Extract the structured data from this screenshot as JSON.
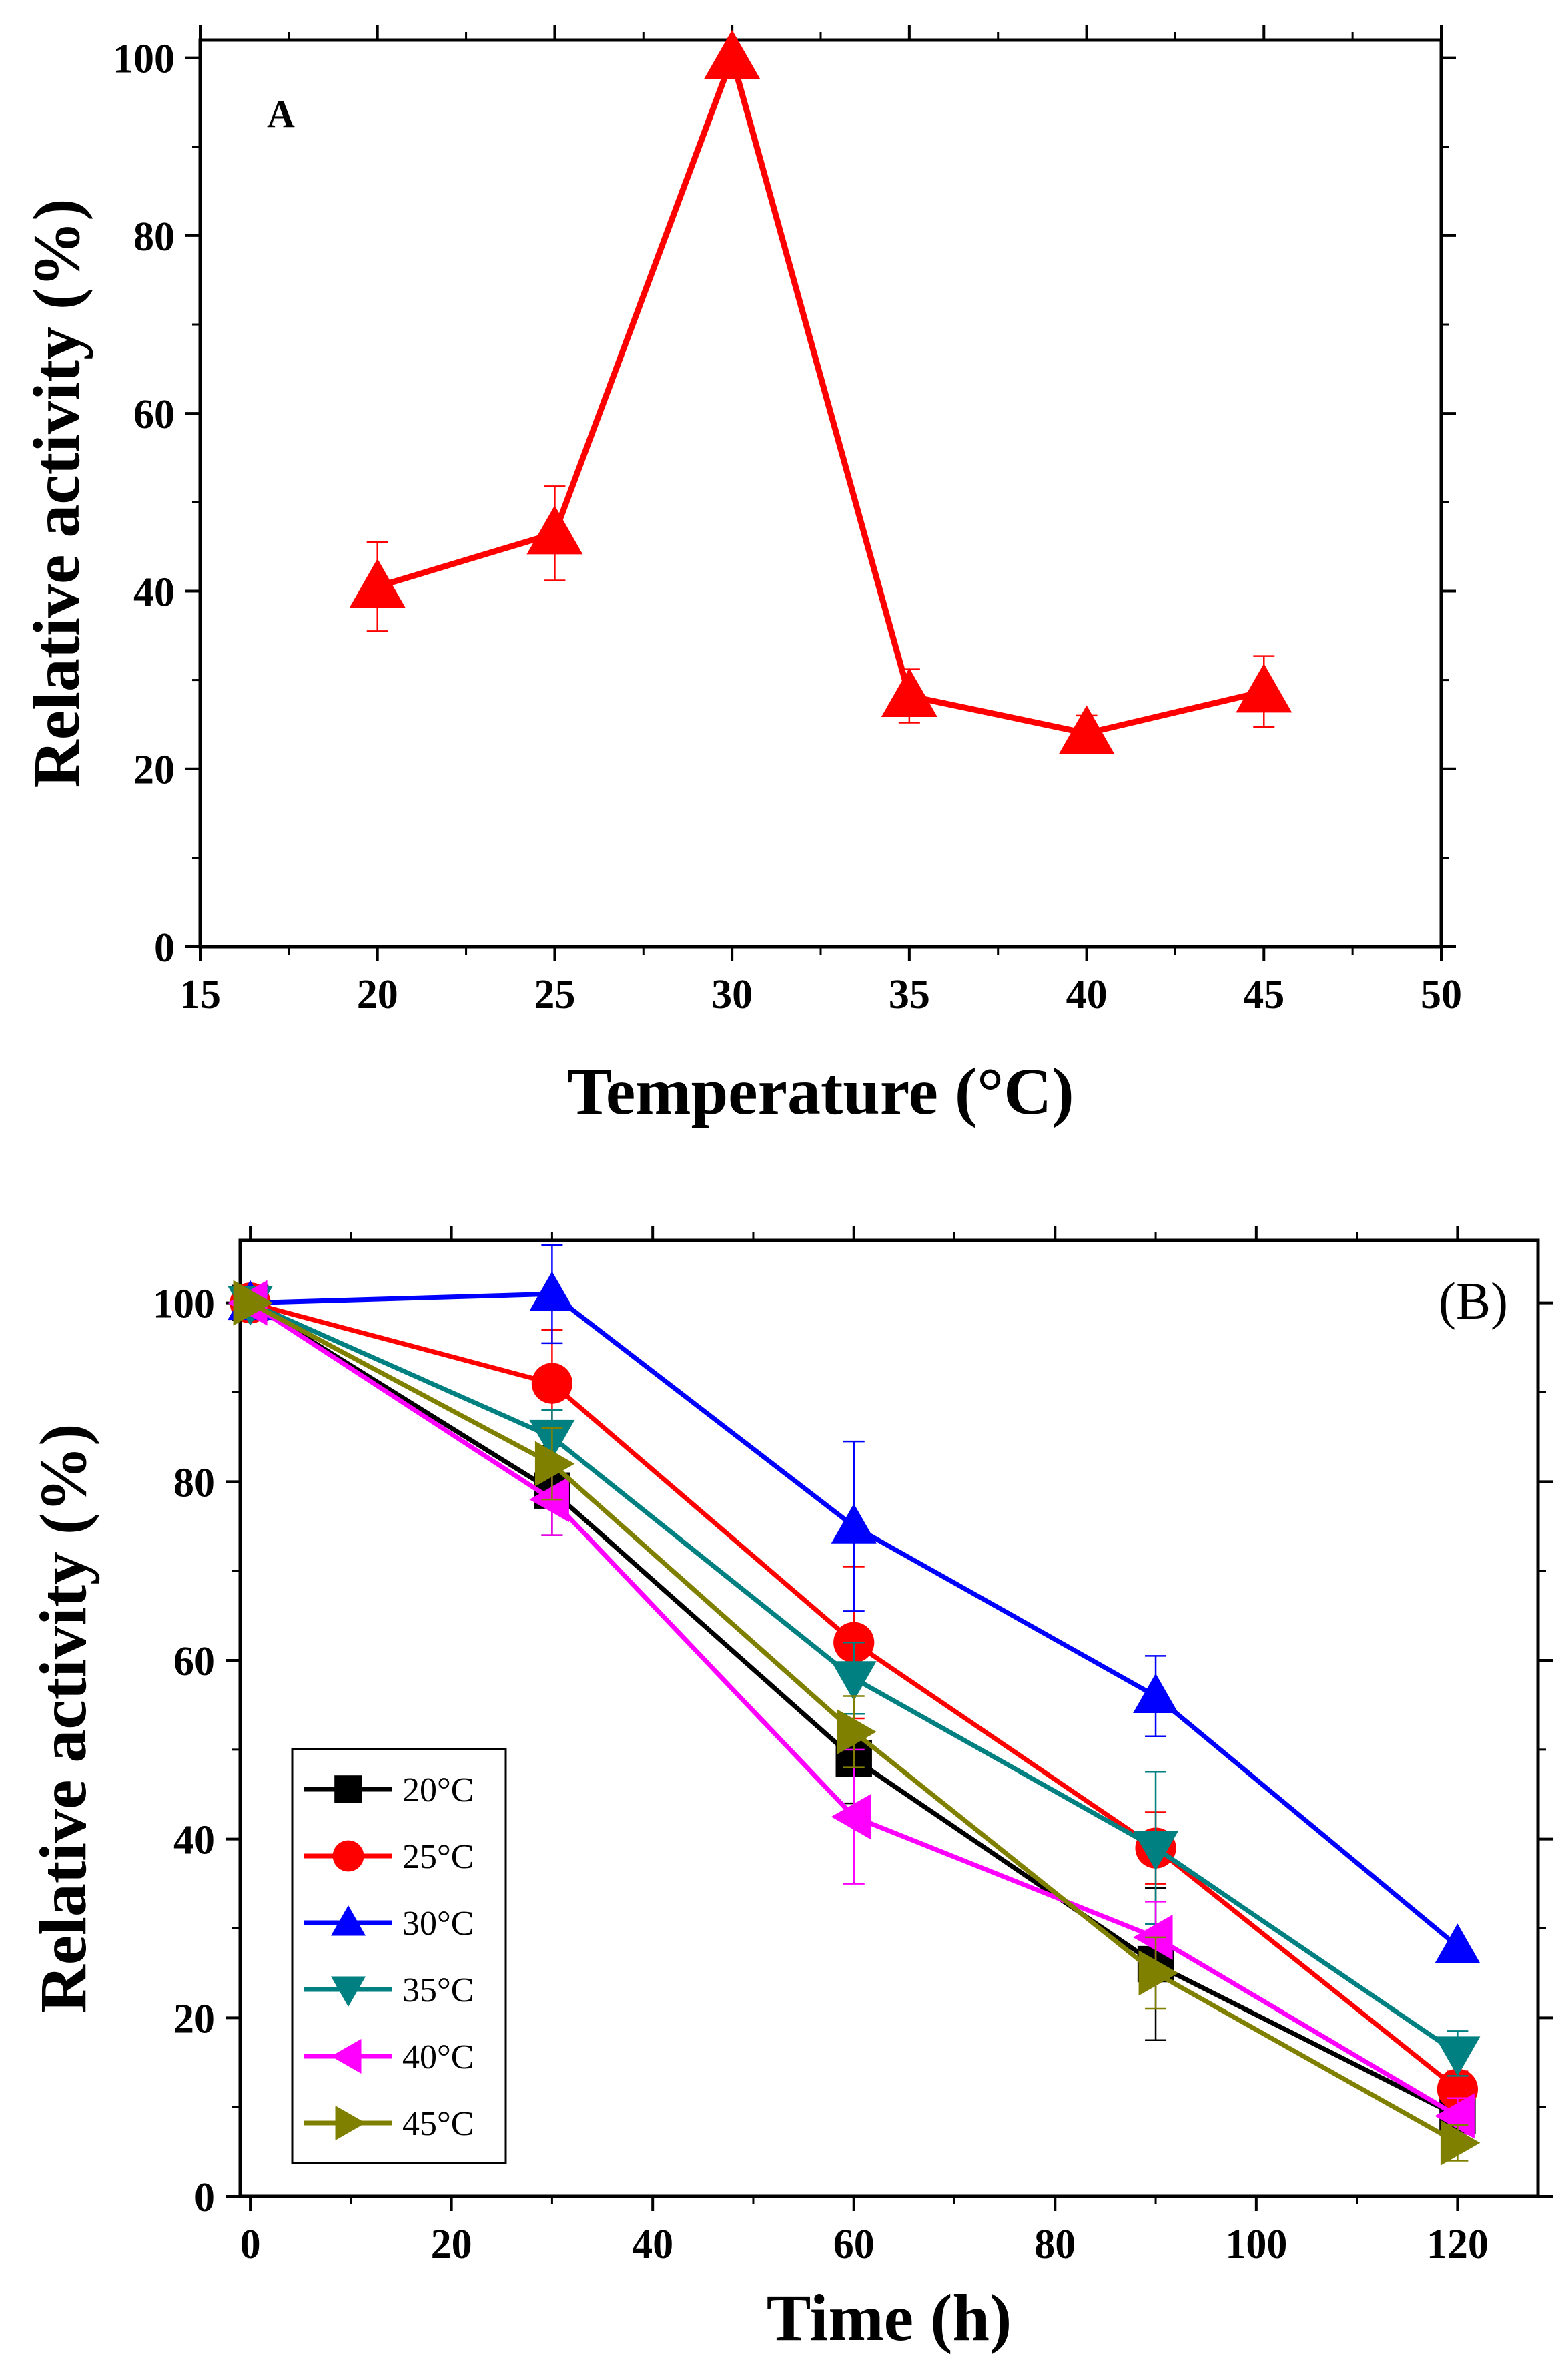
{
  "chart_data": [
    {
      "type": "line",
      "panel_label": "A",
      "xlabel": "Temperature (°C)",
      "ylabel": "Relative activity (%)",
      "xlim": [
        15,
        50
      ],
      "ylim": [
        0,
        102
      ],
      "xticks": [
        15,
        20,
        25,
        30,
        35,
        40,
        45,
        50
      ],
      "yticks": [
        0,
        20,
        40,
        60,
        80,
        100
      ],
      "legend": "none",
      "series": [
        {
          "name": "Relative activity",
          "color": "#ff0000",
          "marker": "triangle-up",
          "x": [
            20,
            25,
            30,
            35,
            40,
            45
          ],
          "y": [
            40.5,
            46.5,
            100,
            28.2,
            24.0,
            28.7
          ],
          "err": [
            5.0,
            5.3,
            0,
            3.0,
            2.0,
            4.0
          ]
        }
      ]
    },
    {
      "type": "line",
      "panel_label": "(B)",
      "xlabel": "Time (h)",
      "ylabel": "Relative activity (%)",
      "xlim": [
        -1,
        128
      ],
      "ylim": [
        0,
        107
      ],
      "xticks": [
        0,
        20,
        40,
        60,
        80,
        100,
        120
      ],
      "yticks": [
        0,
        20,
        40,
        60,
        80,
        100
      ],
      "legend": "bottom-left",
      "x": [
        0,
        30,
        60,
        90,
        120
      ],
      "series": [
        {
          "name": "20°C",
          "color": "#000000",
          "marker": "square",
          "y": [
            100,
            79,
            49,
            26,
            9
          ],
          "err": [
            0,
            5,
            5,
            8.5,
            2
          ]
        },
        {
          "name": "25°C",
          "color": "#ff0000",
          "marker": "circle",
          "y": [
            100,
            91,
            62,
            39,
            12
          ],
          "err": [
            0,
            6,
            8.5,
            4,
            2
          ]
        },
        {
          "name": "30°C",
          "color": "#0000ff",
          "marker": "triangle-up",
          "y": [
            100,
            101,
            75,
            56,
            28
          ],
          "err": [
            0,
            5.5,
            9.5,
            4.5,
            0
          ]
        },
        {
          "name": "35°C",
          "color": "#008080",
          "marker": "triangle-down",
          "y": [
            100,
            85,
            58,
            39,
            16
          ],
          "err": [
            0,
            3,
            4,
            8.5,
            2.5
          ]
        },
        {
          "name": "40°C",
          "color": "#ff00ff",
          "marker": "triangle-left",
          "y": [
            100,
            78,
            42.5,
            29,
            9
          ],
          "err": [
            0,
            4,
            7.5,
            4,
            2
          ]
        },
        {
          "name": "45°C",
          "color": "#808000",
          "marker": "triangle-right",
          "y": [
            100,
            82,
            52,
            25,
            6
          ],
          "err": [
            0,
            4,
            4,
            4,
            2
          ]
        }
      ]
    }
  ]
}
